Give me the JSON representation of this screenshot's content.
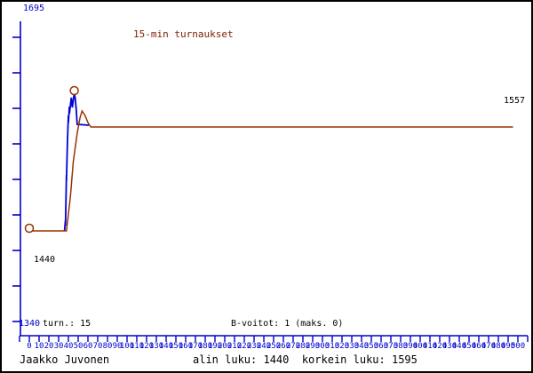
{
  "window": {
    "background": "#ffffff",
    "border_color": "#000000"
  },
  "colors": {
    "axis_blue": "#0000cc",
    "series_blue": "#0000d8",
    "series_brown": "#993300",
    "title_maroon": "#7a1f00",
    "text_black": "#000000"
  },
  "title": {
    "text": "15-min turnaukset"
  },
  "labels": {
    "y_max": "1695",
    "y_min": "1340",
    "start_rating": "1440",
    "final_rating": "1557",
    "tournaments": "turn.: 15",
    "b_wins": "B-voitot: 1 (maks. 0)",
    "player_name": "Jaakko Juvonen",
    "footer_stats": "alin luku: 1440  korkein luku: 1595"
  },
  "chart_data": {
    "type": "line",
    "title": "15-min turnaukset",
    "xlabel": "",
    "ylabel": "",
    "xlim": [
      0,
      510
    ],
    "ylim": [
      1340,
      1695
    ],
    "grid": false,
    "legend": "none",
    "x_tick_step": 10,
    "x_tick_labels": [
      "0",
      "10",
      "20",
      "30",
      "40",
      "50",
      "60",
      "70",
      "80",
      "90",
      "100",
      "110",
      "120",
      "130",
      "140",
      "150",
      "160",
      "170",
      "180",
      "190",
      "200",
      "210",
      "220",
      "230",
      "240",
      "250",
      "260",
      "270",
      "280",
      "290",
      "300",
      "310",
      "320",
      "330",
      "340",
      "350",
      "360",
      "370",
      "380",
      "390",
      "400",
      "410",
      "420",
      "430",
      "440",
      "450",
      "460",
      "470",
      "480",
      "490",
      "500"
    ],
    "y_axis_labels_shown": [
      "1695",
      "1340"
    ],
    "annotations": [
      {
        "text": "1440",
        "meaning": "start rating, lowest value"
      },
      {
        "text": "1557",
        "meaning": "current rating at line end"
      },
      {
        "text": "1595",
        "meaning": "highest value, circled peak"
      }
    ],
    "series": [
      {
        "name": "rating-per-game",
        "color_key": "series_blue",
        "points": [
          [
            36,
            1440
          ],
          [
            37,
            1452
          ],
          [
            37,
            1446
          ],
          [
            38,
            1503
          ],
          [
            38,
            1496
          ],
          [
            39,
            1540
          ],
          [
            40,
            1570
          ],
          [
            40,
            1562
          ],
          [
            41,
            1580
          ],
          [
            41,
            1572
          ],
          [
            43,
            1590
          ],
          [
            44,
            1579
          ],
          [
            46,
            1595
          ],
          [
            47,
            1589
          ],
          [
            48,
            1577
          ],
          [
            49,
            1560
          ],
          [
            61,
            1559
          ]
        ]
      },
      {
        "name": "official-rating",
        "color_key": "series_brown",
        "points": [
          [
            0,
            1440
          ],
          [
            38,
            1440
          ],
          [
            42,
            1478
          ],
          [
            45,
            1518
          ],
          [
            49,
            1550
          ],
          [
            52,
            1568
          ],
          [
            54,
            1575
          ],
          [
            57,
            1570
          ],
          [
            60,
            1562
          ],
          [
            63,
            1557
          ],
          [
            495,
            1557
          ]
        ]
      }
    ],
    "markers": [
      {
        "x": 0,
        "y": 1440,
        "shape": "open-circle"
      },
      {
        "x": 46,
        "y": 1595,
        "shape": "open-circle"
      }
    ]
  }
}
